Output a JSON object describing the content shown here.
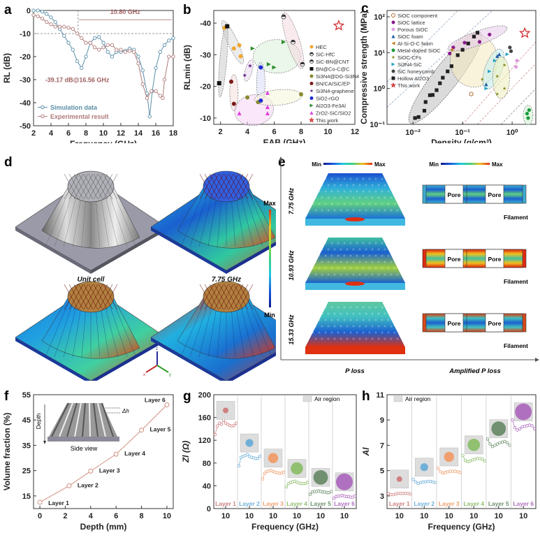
{
  "figure": {
    "panels": [
      "a",
      "b",
      "c",
      "d",
      "e",
      "f",
      "g",
      "h"
    ]
  },
  "chart_data": [
    {
      "id": "a",
      "type": "line",
      "title": "",
      "xlabel": "Frequency (GHz)",
      "ylabel": "RL (dB)",
      "xlim": [
        2,
        18
      ],
      "ylim": [
        -50,
        0
      ],
      "xticks": [
        "2",
        "4",
        "6",
        "8",
        "10",
        "12",
        "14",
        "16",
        "18"
      ],
      "yticks": [
        "0",
        "-10",
        "-20",
        "-30",
        "-40",
        "-50"
      ],
      "threshold": -10,
      "annotations": [
        "10.80 GHz",
        "-39.17 dB@16.56 GHz"
      ],
      "legend": "bottom-left",
      "series": [
        {
          "name": "Simulation data",
          "color": "#5b8fa8",
          "x": [
            2,
            2.5,
            3,
            3.5,
            4,
            4.5,
            5,
            5.5,
            6,
            6.5,
            7,
            7.5,
            8,
            8.5,
            9,
            9.5,
            10,
            10.5,
            11,
            11.5,
            12,
            12.5,
            13,
            13.5,
            14,
            14.5,
            15,
            15.3,
            15.6,
            16,
            16.5,
            17,
            17.5,
            18
          ],
          "y": [
            0,
            0,
            -0.5,
            -1.5,
            -3,
            -5,
            -8,
            -11,
            -14,
            -17,
            -22,
            -25,
            -20,
            -14,
            -12,
            -11.5,
            -14,
            -18,
            -20,
            -18,
            -18,
            -17.5,
            -16.5,
            -17,
            -20,
            -26,
            -36,
            -46,
            -35,
            -25,
            -18,
            -15,
            -13,
            -12
          ]
        },
        {
          "name": "Experimental result",
          "color": "#b07a7a",
          "x": [
            2,
            2.5,
            3,
            3.5,
            4,
            4.5,
            5,
            5.5,
            6,
            6.5,
            7,
            7.5,
            8,
            8.5,
            9,
            9.5,
            10,
            10.5,
            11,
            11.5,
            12,
            12.5,
            13,
            13.5,
            14,
            14.5,
            15,
            15.5,
            16,
            16.5,
            16.8,
            17,
            17.5,
            18
          ],
          "y": [
            -2,
            -2.5,
            -3.5,
            -5,
            -6,
            -7,
            -7,
            -7,
            -7.5,
            -8,
            -10,
            -12,
            -14,
            -14,
            -16,
            -17,
            -16,
            -15,
            -15,
            -17,
            -17,
            -18,
            -17.5,
            -18,
            -23,
            -32,
            -38,
            -35,
            -35,
            -37,
            -38,
            -30,
            -20,
            -20
          ]
        }
      ]
    },
    {
      "id": "b",
      "type": "scatter",
      "xlabel": "EAB (GHz)",
      "ylabel": "RLmin (dB)",
      "xlim": [
        1.5,
        12
      ],
      "ylim": [
        -8,
        -44
      ],
      "xticks": [
        "2",
        "4",
        "6",
        "8",
        "10",
        "12"
      ],
      "yticks": [
        "-40",
        "-30",
        "-20",
        "-10"
      ],
      "legend": "right",
      "series": [
        {
          "name": "HEC",
          "color": "#f0a830",
          "marker": "circle",
          "points": [
            [
              2.3,
              -38.5
            ],
            [
              3,
              -32
            ],
            [
              3.4,
              -33
            ],
            [
              3.5,
              -29.5
            ]
          ]
        },
        {
          "name": "SiC-HfC",
          "color": "#333333",
          "marker": "half",
          "points": [
            [
              6.7,
              -42
            ],
            [
              7.4,
              -34
            ]
          ]
        },
        {
          "name": "SiC-BN@CNT",
          "color": "#333333",
          "marker": "half",
          "points": [
            [
              8.1,
              -27
            ]
          ]
        },
        {
          "name": "BN@Co-C@C",
          "color": "#111111",
          "marker": "square",
          "points": [
            [
              2.5,
              -39
            ],
            [
              1.9,
              -21
            ]
          ]
        },
        {
          "name": "Si3N4@DG-Si3N4",
          "color": "#8a8a30",
          "marker": "circle",
          "points": [
            [
              4,
              -16.5
            ],
            [
              4.8,
              -15
            ],
            [
              8,
              -17.5
            ]
          ]
        },
        {
          "name": "BN/CA/SiC/EP",
          "color": "#7a1a1a",
          "marker": "circle",
          "points": [
            [
              2.8,
              -21.5
            ],
            [
              3,
              -14.5
            ]
          ]
        },
        {
          "name": "Si3N4-graphene",
          "color": "#6a2a8a",
          "marker": "star",
          "points": [
            [
              4.2,
              -26.5
            ],
            [
              3.8,
              -23.5
            ]
          ]
        },
        {
          "name": "SiO2-rGO",
          "color": "#1a2ad0",
          "marker": "circle",
          "points": [
            [
              5,
              -26
            ],
            [
              5,
              -15.5
            ]
          ]
        },
        {
          "name": "Al2O3-Fe3Al",
          "color": "#2a8a2a",
          "marker": "triangle-right",
          "points": [
            [
              4.4,
              -32
            ],
            [
              6.7,
              -34
            ],
            [
              5.6,
              -27
            ],
            [
              6,
              -26
            ]
          ]
        },
        {
          "name": "ZrO2-SiC/SiO2",
          "color": "#e040e0",
          "marker": "triangle",
          "points": [
            [
              5.5,
              -18
            ],
            [
              5.5,
              -13.5
            ],
            [
              3.4,
              -11.5
            ],
            [
              5.5,
              -11.5
            ]
          ]
        },
        {
          "name": "This work",
          "color": "#d03030",
          "marker": "star-open",
          "points": [
            [
              10.8,
              -39.2
            ]
          ]
        }
      ]
    },
    {
      "id": "c",
      "type": "scatter",
      "xlabel": "Density (g/cm³)",
      "ylabel": "Compressive strength (MPa)",
      "xscale": "log",
      "yscale": "log",
      "xlim": [
        0.003,
        3
      ],
      "ylim": [
        0.1,
        150
      ],
      "xticks": [
        "10⁻²",
        "10⁻¹",
        "10⁰"
      ],
      "yticks": [
        "10²",
        "10¹",
        "10⁰",
        "10⁻¹"
      ],
      "legend": "top-left",
      "series": [
        {
          "name": "SiOC component",
          "color": "#b07030",
          "marker": "circle-open",
          "points": [
            [
              0.15,
              0.7
            ]
          ]
        },
        {
          "name": "SiOC lattice",
          "color": "#8a1a8a",
          "marker": "circle",
          "points": [
            [
              0.055,
              9.5
            ],
            [
              0.065,
              14
            ],
            [
              0.11,
              19
            ],
            [
              0.35,
              32
            ],
            [
              0.22,
              20
            ]
          ]
        },
        {
          "name": "Porous SiOC",
          "color": "#e0a0e0",
          "marker": "circle",
          "points": [
            [
              1.2,
              4
            ],
            [
              1.25,
              6
            ]
          ]
        },
        {
          "name": "SiOC foam",
          "color": "#1a5aa0",
          "marker": "triangle",
          "points": [
            [
              0.3,
              1.3
            ],
            [
              0.5,
              8
            ],
            [
              0.55,
              9
            ]
          ]
        },
        {
          "name": "Al-Si-O-C foam",
          "color": "#c08020",
          "marker": "triangle-left",
          "points": [
            [
              0.06,
              12
            ]
          ]
        },
        {
          "name": "Metal-doped SiOC",
          "color": "#1a9a3a",
          "marker": "circle",
          "points": [
            [
              2,
              0.2
            ],
            [
              2.1,
              0.15
            ],
            [
              2.2,
              0.25
            ]
          ]
        },
        {
          "name": "SiOC-CFs",
          "color": "#8a8a20",
          "marker": "star",
          "points": [
            [
              0.25,
              1.8
            ],
            [
              0.5,
              0.7
            ],
            [
              0.5,
              2.2
            ],
            [
              0.7,
              1
            ],
            [
              0.7,
              4.5
            ]
          ]
        },
        {
          "name": "Si3N4-SiC",
          "color": "#20a0c0",
          "marker": "triangle-right",
          "points": [
            [
              0.3,
              1
            ],
            [
              0.35,
              3
            ],
            [
              0.45,
              6
            ],
            [
              0.8,
              9
            ]
          ]
        },
        {
          "name": "SiC honeycomb",
          "color": "#444444",
          "marker": "circle",
          "points": [
            [
              0.9,
              14
            ],
            [
              0.95,
              11
            ]
          ]
        },
        {
          "name": "Hollow Al2O3",
          "color": "#222222",
          "marker": "square",
          "points": [
            [
              0.011,
              0.15
            ],
            [
              0.013,
              0.16
            ],
            [
              0.017,
              0.24
            ],
            [
              0.018,
              0.42
            ],
            [
              0.022,
              0.65
            ],
            [
              0.025,
              0.66
            ],
            [
              0.03,
              0.9
            ],
            [
              0.035,
              1.4
            ],
            [
              0.04,
              2
            ],
            [
              0.05,
              3
            ],
            [
              0.06,
              4.2
            ],
            [
              0.08,
              8.5
            ],
            [
              0.1,
              12
            ],
            [
              0.13,
              18
            ],
            [
              0.17,
              28
            ],
            [
              0.2,
              36
            ]
          ]
        },
        {
          "name": "This work",
          "color": "#d03030",
          "marker": "star-open",
          "points": [
            [
              1.8,
              35
            ]
          ]
        }
      ]
    },
    {
      "id": "f",
      "type": "line",
      "xlabel": "Depth (mm)",
      "ylabel": "Volume fraction (%)",
      "xlim": [
        -0.5,
        10.5
      ],
      "ylim": [
        10,
        55
      ],
      "xticks": [
        "0",
        "2",
        "4",
        "6",
        "8",
        "10"
      ],
      "yticks": [
        "15",
        "25",
        "35",
        "45",
        "55"
      ],
      "series": [
        {
          "name": "Volume fraction",
          "color": "#d09080",
          "x": [
            0,
            2.3,
            4,
            6,
            8,
            10
          ],
          "y": [
            12.5,
            19,
            24.8,
            31.5,
            41,
            51
          ]
        }
      ],
      "point_labels": [
        "Layer 1",
        "Layer 2",
        "Layer 3",
        "Layer 4",
        "Layer 5",
        "Layer 6"
      ],
      "inset": {
        "label": "Side view",
        "depth_label": "Depth",
        "dh_label": "Δh"
      }
    },
    {
      "id": "g",
      "type": "line",
      "xlabel": "Frequency (GHz)",
      "ylabel": "Zl (Ω)",
      "ylim": [
        0,
        200
      ],
      "yticks": [
        "0",
        "40",
        "80",
        "120",
        "160",
        "200"
      ],
      "xticks_each": "10",
      "legend": "top-right",
      "legend_label": "Air region",
      "series": [
        {
          "name": "Layer 1",
          "color": "#d08080",
          "values": [
            130,
            145,
            150,
            148,
            155,
            150,
            148,
            146,
            145,
            146,
            150
          ]
        },
        {
          "name": "Layer 2",
          "color": "#70b0d8",
          "values": [
            75,
            90,
            92,
            93,
            95,
            92,
            90,
            89,
            88,
            88,
            92
          ]
        },
        {
          "name": "Layer 3",
          "color": "#f0a070",
          "values": [
            52,
            62,
            65,
            66,
            67,
            65,
            64,
            63,
            62,
            62,
            64
          ]
        },
        {
          "name": "Layer 4",
          "color": "#90c070",
          "values": [
            38,
            44,
            46,
            47,
            48,
            46,
            45,
            44,
            44,
            44,
            46
          ]
        },
        {
          "name": "Layer 5",
          "color": "#709070",
          "values": [
            25,
            29,
            30,
            30,
            31,
            30,
            29,
            29,
            28,
            28,
            30
          ]
        },
        {
          "name": "Layer 6",
          "color": "#b070c0",
          "values": [
            18,
            21,
            22,
            22,
            23,
            22,
            21,
            21,
            20,
            20,
            22
          ]
        }
      ]
    },
    {
      "id": "h",
      "type": "line",
      "xlabel": "Frequency (GHz)",
      "ylabel": "Al",
      "ylim": [
        2,
        11
      ],
      "yticks": [
        "3",
        "5",
        "7",
        "9",
        "11"
      ],
      "xticks_each": "10",
      "legend": "top-left",
      "legend_label": "Air region",
      "series": [
        {
          "name": "Layer 1",
          "color": "#d08080",
          "values": [
            3.2,
            3.1,
            3.1,
            3.15,
            3.2,
            3.2,
            3.2,
            3.2,
            3.2,
            3.15
          ]
        },
        {
          "name": "Layer 2",
          "color": "#70b0d8",
          "values": [
            4.3,
            4.1,
            4.0,
            4.05,
            4.1,
            4.1,
            4.15,
            4.15,
            4.1,
            4.05
          ]
        },
        {
          "name": "Layer 3",
          "color": "#f0a070",
          "values": [
            5.2,
            4.9,
            4.8,
            4.85,
            4.9,
            4.95,
            4.95,
            4.95,
            4.9,
            4.85
          ]
        },
        {
          "name": "Layer 4",
          "color": "#90c070",
          "values": [
            6.2,
            5.8,
            5.7,
            5.75,
            5.85,
            5.9,
            5.95,
            5.95,
            5.9,
            5.75
          ]
        },
        {
          "name": "Layer 5",
          "color": "#709070",
          "values": [
            7.5,
            7.1,
            6.9,
            7.0,
            7.1,
            7.2,
            7.25,
            7.3,
            7.2,
            7.0
          ]
        },
        {
          "name": "Layer 6",
          "color": "#b070c0",
          "values": [
            9.0,
            8.4,
            8.2,
            8.3,
            8.45,
            8.5,
            8.55,
            8.6,
            8.55,
            8.3
          ]
        }
      ]
    }
  ],
  "panel_d": {
    "label": "d",
    "captions": [
      "Unit cell",
      "7.75 GHz",
      "10.93 GHz",
      "15.33 GHz"
    ],
    "colorbar": {
      "max": "Max",
      "min": "Min"
    },
    "axes": [
      "x",
      "y",
      "z"
    ]
  },
  "panel_e": {
    "label": "e",
    "rows": [
      "7.75 GHz",
      "10.93 GHz",
      "15.33 GHz"
    ],
    "colorbar": {
      "min": "Min",
      "max": "Max"
    },
    "pore_label": "Pore",
    "filament_label": "Filament",
    "x_labels": [
      "P loss",
      "Amplified P loss"
    ],
    "row_intensity": [
      0.35,
      0.85,
      0.6
    ]
  }
}
